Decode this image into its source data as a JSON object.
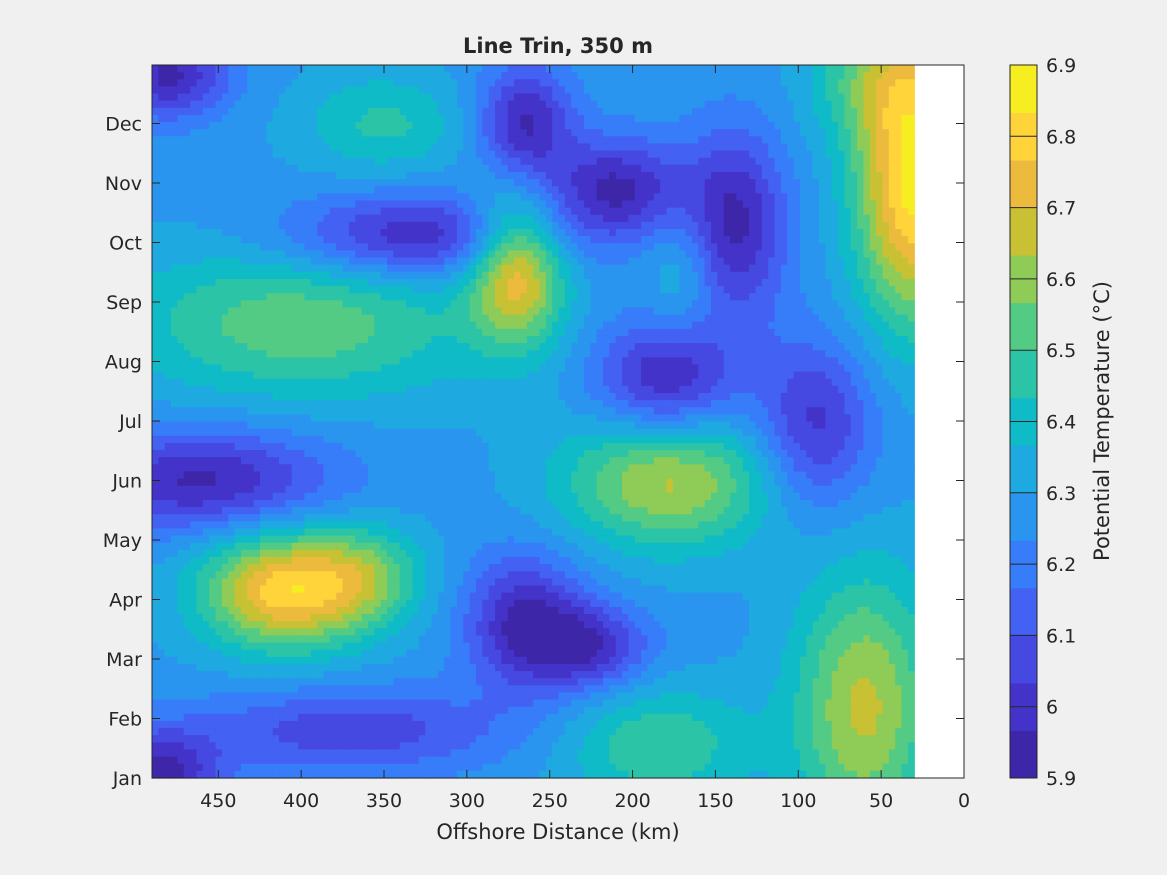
{
  "chart_data": {
    "type": "heatmap",
    "subtype": "filled-contour",
    "title": "Line Trin, 350 m",
    "xlabel": "Offshore Distance (km)",
    "ylabel": "",
    "x_reversed": true,
    "xlim": [
      0,
      490
    ],
    "x_ticks": [
      450,
      400,
      350,
      300,
      250,
      200,
      150,
      100,
      50,
      0
    ],
    "x_tick_labels": [
      "450",
      "400",
      "350",
      "300",
      "250",
      "200",
      "150",
      "100",
      "50",
      "0"
    ],
    "y_categories": [
      "Jan",
      "Feb",
      "Mar",
      "Apr",
      "May",
      "Jun",
      "Jul",
      "Aug",
      "Sep",
      "Oct",
      "Nov",
      "Dec"
    ],
    "colorbar": {
      "label": "Potential Temperature (°C)",
      "range": [
        5.9,
        6.9
      ],
      "ticks": [
        5.9,
        6,
        6.1,
        6.2,
        6.3,
        6.4,
        6.5,
        6.6,
        6.7,
        6.8,
        6.9
      ],
      "tick_labels": [
        "5.9",
        "6",
        "6.1",
        "6.2",
        "6.3",
        "6.4",
        "6.5",
        "6.6",
        "6.7",
        "6.8",
        "6.9"
      ],
      "colormap": [
        "#3e26a8",
        "#4433c9",
        "#4648e2",
        "#4361f2",
        "#377df9",
        "#2a95ef",
        "#1eaae0",
        "#0ebbc6",
        "#2cc4a6",
        "#53cb84",
        "#8ecb57",
        "#c8c134",
        "#ecbb3e",
        "#fed43a",
        "#f7ee21"
      ]
    },
    "data_extent": {
      "x_min": 30,
      "x_max": 490
    },
    "features": [
      {
        "x": 410,
        "y": 3.15,
        "value": 6.8,
        "sx": 35,
        "sy": 0.7
      },
      {
        "x": 360,
        "y": 3.4,
        "value": 6.5,
        "sx": 25,
        "sy": 0.6
      },
      {
        "x": 400,
        "y": 7.65,
        "value": 6.55,
        "sx": 75,
        "sy": 0.9
      },
      {
        "x": 350,
        "y": 11.0,
        "value": 6.45,
        "sx": 35,
        "sy": 0.6
      },
      {
        "x": 270,
        "y": 8.6,
        "value": 6.75,
        "sx": 20,
        "sy": 0.9
      },
      {
        "x": 178,
        "y": 5.0,
        "value": 6.65,
        "sx": 45,
        "sy": 0.8
      },
      {
        "x": 185,
        "y": 0.55,
        "value": 6.5,
        "sx": 40,
        "sy": 0.7
      },
      {
        "x": 60,
        "y": 1.2,
        "value": 6.65,
        "sx": 30,
        "sy": 1.6
      },
      {
        "x": 30,
        "y": 9.9,
        "value": 6.85,
        "sx": 25,
        "sy": 1.6
      },
      {
        "x": 50,
        "y": 11.8,
        "value": 6.5,
        "sx": 30,
        "sy": 0.8
      },
      {
        "x": 170,
        "y": 8.5,
        "value": 6.4,
        "sx": 15,
        "sy": 0.8
      },
      {
        "x": 460,
        "y": 5.0,
        "value": 5.95,
        "sx": 55,
        "sy": 0.6
      },
      {
        "x": 330,
        "y": 9.1,
        "value": 5.95,
        "sx": 55,
        "sy": 0.5
      },
      {
        "x": 265,
        "y": 11.0,
        "value": 5.95,
        "sx": 20,
        "sy": 0.7
      },
      {
        "x": 210,
        "y": 9.9,
        "value": 5.95,
        "sx": 30,
        "sy": 0.6
      },
      {
        "x": 138,
        "y": 9.3,
        "value": 5.95,
        "sx": 22,
        "sy": 1.1
      },
      {
        "x": 180,
        "y": 6.7,
        "value": 5.95,
        "sx": 30,
        "sy": 0.7
      },
      {
        "x": 90,
        "y": 5.9,
        "value": 6.0,
        "sx": 25,
        "sy": 1.0
      },
      {
        "x": 265,
        "y": 2.6,
        "value": 5.95,
        "sx": 25,
        "sy": 0.8
      },
      {
        "x": 225,
        "y": 2.2,
        "value": 6.0,
        "sx": 25,
        "sy": 0.5
      },
      {
        "x": 370,
        "y": 0.8,
        "value": 6.05,
        "sx": 65,
        "sy": 0.5
      },
      {
        "x": 485,
        "y": 0.1,
        "value": 5.95,
        "sx": 25,
        "sy": 0.5
      },
      {
        "x": 480,
        "y": 11.8,
        "value": 5.95,
        "sx": 25,
        "sy": 0.5
      }
    ]
  }
}
